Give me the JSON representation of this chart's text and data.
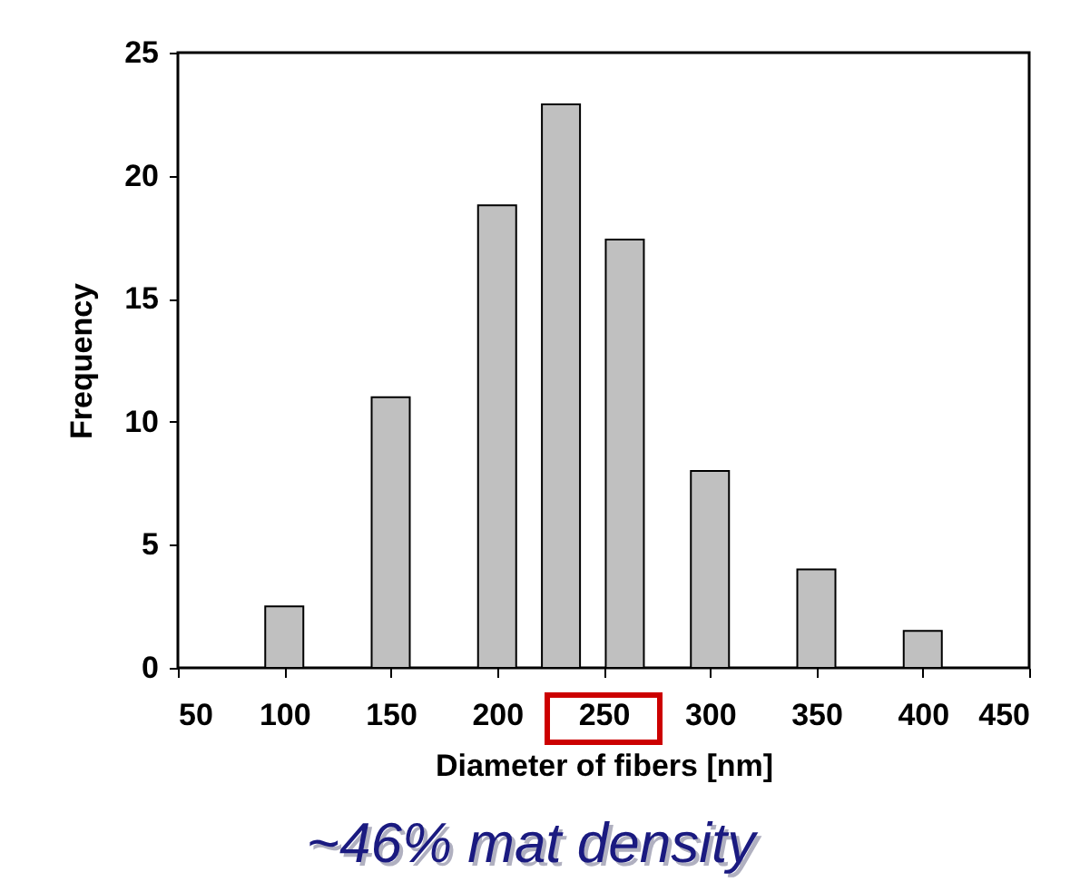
{
  "chart_data": {
    "type": "bar",
    "xlabel": "Diameter of fibers [nm]",
    "ylabel": "Frequency",
    "x": [
      100,
      150,
      200,
      230,
      260,
      300,
      350,
      400
    ],
    "values": [
      2.5,
      11.0,
      18.8,
      22.9,
      17.4,
      8.0,
      4.0,
      1.5
    ],
    "color": "#c0c0c0",
    "xlim": [
      50,
      450
    ],
    "xticks": [
      50,
      100,
      150,
      200,
      250,
      300,
      350,
      400,
      450
    ],
    "ylim": [
      0,
      25
    ],
    "yticks": [
      0,
      5,
      10,
      15,
      20,
      25
    ],
    "grid": false,
    "annotations": [
      "~46% mat density"
    ]
  }
}
